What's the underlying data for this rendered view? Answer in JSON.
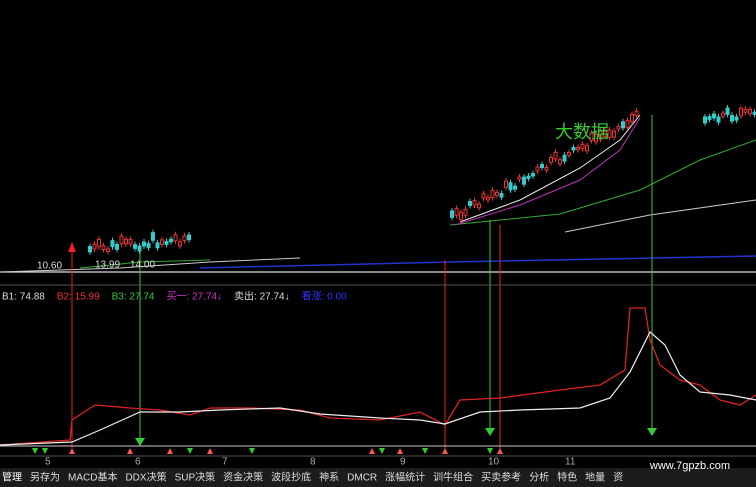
{
  "upper": {
    "price_labels": [
      "10.60",
      "13.99",
      "14.00"
    ],
    "annotation": "大数据"
  },
  "indicator": {
    "readouts": [
      "B1: 74.88",
      "B2: 15.99",
      "B3: 27.74",
      "买一: 27.74↓",
      "卖出: 27.74↓",
      "看涨: 0.00"
    ]
  },
  "axis_labels": [
    "5",
    "6",
    "7",
    "8",
    "9",
    "10",
    "11"
  ],
  "menu": [
    "管理",
    "另存为",
    "MACD基本",
    "DDX决策",
    "SUP决策",
    "资金决策",
    "波段抄底",
    "神系",
    "DMCR",
    "涨幅统计",
    "训牛组合",
    "买卖参考",
    "分析",
    "特色",
    "地量",
    "资"
  ],
  "watermark": "www.7gpzb.com"
}
